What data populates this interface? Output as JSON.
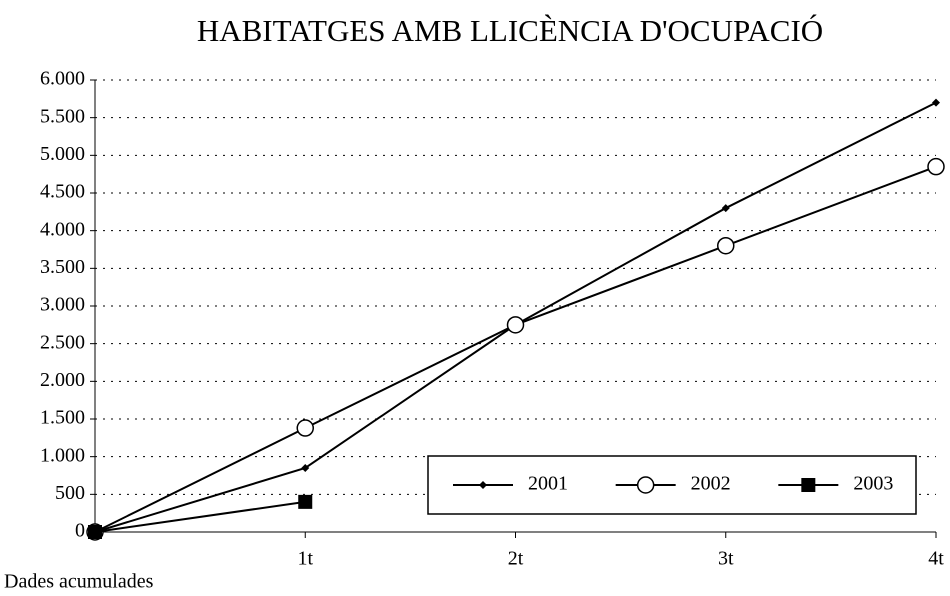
{
  "chart_data": {
    "type": "line",
    "title": "HABITATGES AMB LLICÈNCIA D'OCUPACIÓ",
    "note": "Dades acumulades",
    "categories": [
      null,
      "1t",
      "2t",
      "3t",
      "4t"
    ],
    "series": [
      {
        "name": "2001",
        "color": "#000000",
        "marker": "diamond",
        "values": [
          0,
          850,
          2750,
          4300,
          5700
        ]
      },
      {
        "name": "2002",
        "color": "#000000",
        "marker": "circle",
        "values": [
          0,
          1380,
          2750,
          3800,
          4850
        ]
      },
      {
        "name": "2003",
        "color": "#000000",
        "marker": "square",
        "values": [
          0,
          400,
          null,
          null,
          null
        ]
      }
    ],
    "ylim": [
      0,
      6000
    ],
    "yticks": [
      0,
      500,
      {
        "value": 1000,
        "label": "1.000"
      },
      {
        "value": 1500,
        "label": "1.500"
      },
      {
        "value": 2000,
        "label": "2.000"
      },
      {
        "value": 2500,
        "label": "2.500"
      },
      {
        "value": 3000,
        "label": "3.000"
      },
      {
        "value": 3500,
        "label": "3.500"
      },
      {
        "value": 4000,
        "label": "4.000"
      },
      {
        "value": 4500,
        "label": "4.500"
      },
      {
        "value": 5000,
        "label": "5.000"
      },
      {
        "value": 5500,
        "label": "5.500"
      },
      {
        "value": 6000,
        "label": "6.000"
      }
    ],
    "grid": true,
    "legend": "lower right"
  }
}
